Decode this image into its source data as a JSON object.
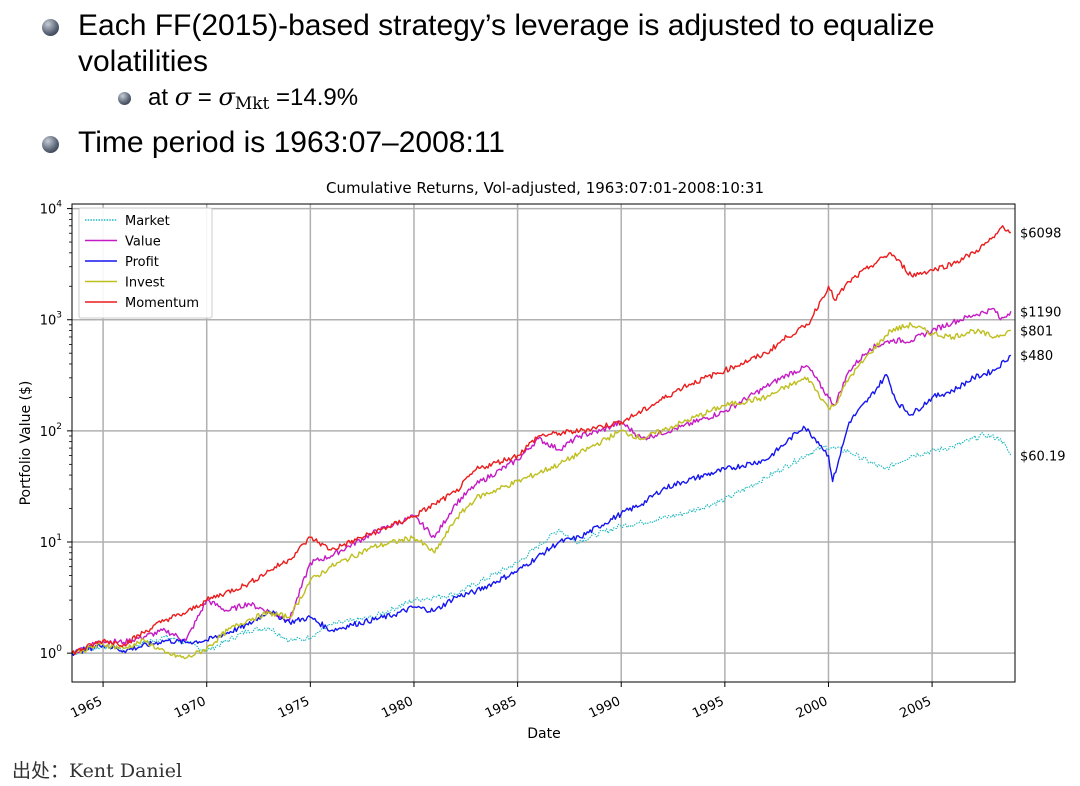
{
  "bullets": {
    "line1": "Each FF(2015)-based strategy’s leverage is adjusted to equalize",
    "line1b": "volatilities",
    "sub_prefix": "at ",
    "sub_sigma": "σ",
    "sub_eq": " = ",
    "sub_sigma2": "σ",
    "sub_mkt": "Mkt",
    "sub_value": " =14.9%",
    "line2": "Time period is 1963:07–2008:11"
  },
  "source": "出处：Kent Daniel",
  "chart_data": {
    "type": "line",
    "title": "Cumulative Returns, Vol-adjusted, 1963:07:01-2008:10:31",
    "xlabel": "Date",
    "ylabel": "Portfolio Value ($)",
    "yscale": "log",
    "xlim": [
      1963.5,
      2009.0
    ],
    "ylim": [
      0.55,
      11000
    ],
    "x_ticks": [
      "1965",
      "1970",
      "1975",
      "1980",
      "1985",
      "1990",
      "1995",
      "2000",
      "2005"
    ],
    "y_ticks": [
      {
        "base": "10",
        "exp": "0",
        "value": 1
      },
      {
        "base": "10",
        "exp": "1",
        "value": 10
      },
      {
        "base": "10",
        "exp": "2",
        "value": 100
      },
      {
        "base": "10",
        "exp": "3",
        "value": 1000
      },
      {
        "base": "10",
        "exp": "4",
        "value": 10000
      }
    ],
    "grid": true,
    "legend_position": "top-left",
    "series": [
      {
        "name": "Market",
        "color": "#1fb8bf",
        "dashed": true,
        "end_label": "$60.19",
        "x": [
          1963.5,
          1965,
          1966,
          1968,
          1969,
          1970,
          1972,
          1973,
          1974,
          1974.8,
          1976,
          1978,
          1980,
          1981,
          1982,
          1985,
          1987,
          1987.8,
          1990,
          1991,
          1993,
          1995,
          1997,
          1999,
          1999.8,
          2000.2,
          2001,
          2002.7,
          2004,
          2006,
          2007.5,
          2008.3,
          2008.8
        ],
        "y": [
          1.0,
          1.15,
          1.1,
          1.4,
          1.25,
          1.05,
          1.6,
          1.7,
          1.3,
          1.35,
          1.8,
          2.1,
          3.0,
          3.2,
          3.4,
          6.5,
          13,
          10,
          14,
          15,
          18,
          24,
          38,
          62,
          72,
          70,
          65,
          45,
          60,
          72,
          92,
          85,
          60.19
        ]
      },
      {
        "name": "Value",
        "color": "#c41bc4",
        "dashed": false,
        "end_label": "$1190",
        "x": [
          1963.5,
          1965,
          1966,
          1968,
          1969,
          1970,
          1971,
          1972,
          1974,
          1975,
          1976,
          1978,
          1980,
          1981,
          1982,
          1983,
          1985,
          1986,
          1987,
          1988,
          1989,
          1990,
          1991,
          1993,
          1995,
          1997,
          1998,
          1999,
          2000,
          2000.3,
          2001,
          2002,
          2003,
          2004,
          2005,
          2006,
          2007,
          2008,
          2008.3,
          2008.8
        ],
        "y": [
          1.0,
          1.3,
          1.25,
          1.6,
          1.3,
          3.0,
          2.4,
          2.8,
          2.0,
          6.5,
          7.5,
          12,
          17,
          11,
          22,
          33,
          55,
          85,
          68,
          90,
          100,
          120,
          85,
          110,
          150,
          250,
          320,
          380,
          200,
          170,
          350,
          550,
          650,
          650,
          800,
          950,
          1100,
          1250,
          1000,
          1190
        ]
      },
      {
        "name": "Profit",
        "color": "#1515f0",
        "dashed": false,
        "end_label": "$480",
        "x": [
          1963.5,
          1965,
          1966,
          1968,
          1969,
          1970,
          1972,
          1973,
          1974,
          1975,
          1976,
          1977,
          1979,
          1980,
          1981,
          1982,
          1983,
          1985,
          1987,
          1988,
          1990,
          1991,
          1992,
          1993,
          1995,
          1997,
          1998,
          1998.8,
          1999.5,
          2000,
          2000.2,
          2000.5,
          2001,
          2002,
          2002.8,
          2003.3,
          2004,
          2005,
          2006,
          2007,
          2008,
          2008.8
        ],
        "y": [
          1.0,
          1.2,
          1.05,
          1.3,
          1.25,
          1.3,
          1.8,
          2.4,
          1.9,
          2.1,
          1.6,
          1.8,
          2.2,
          2.6,
          2.4,
          3.2,
          3.6,
          5.5,
          10,
          11,
          18,
          22,
          30,
          35,
          45,
          55,
          80,
          110,
          80,
          60,
          35,
          55,
          120,
          200,
          320,
          180,
          140,
          200,
          230,
          300,
          350,
          480
        ]
      },
      {
        "name": "Invest",
        "color": "#bfbf1f",
        "dashed": false,
        "end_label": "$801",
        "x": [
          1963.5,
          1965,
          1966,
          1967,
          1968,
          1969,
          1970,
          1971,
          1972,
          1973,
          1974,
          1975,
          1976,
          1978,
          1980,
          1981,
          1982,
          1983,
          1985,
          1987,
          1990,
          1991,
          1993,
          1995,
          1997,
          1998,
          1999,
          2000,
          2000.3,
          2001,
          2002,
          2003,
          2004,
          2005,
          2006,
          2007,
          2008,
          2008.8
        ],
        "y": [
          1.0,
          1.2,
          1.1,
          1.3,
          1.0,
          0.9,
          1.1,
          1.6,
          2.0,
          2.3,
          2.1,
          4.5,
          6.0,
          9,
          11,
          8,
          16,
          25,
          35,
          50,
          100,
          85,
          120,
          170,
          200,
          250,
          300,
          160,
          170,
          300,
          500,
          800,
          900,
          750,
          700,
          800,
          700,
          801
        ]
      },
      {
        "name": "Momentum",
        "color": "#ec1c1c",
        "dashed": false,
        "end_label": "$6098",
        "x": [
          1963.5,
          1965,
          1966,
          1968,
          1969,
          1970,
          1972,
          1973,
          1974,
          1975,
          1976,
          1978,
          1980,
          1981,
          1982,
          1983,
          1985,
          1986,
          1987,
          1988,
          1990,
          1991,
          1993,
          1995,
          1997,
          1998,
          1999,
          2000,
          2000.3,
          2001,
          2002,
          2003,
          2004,
          2005,
          2006,
          2007,
          2008,
          2008.4,
          2008.8
        ],
        "y": [
          1.0,
          1.3,
          1.2,
          2.0,
          2.3,
          3.0,
          4.2,
          5.5,
          7.0,
          11,
          8.5,
          12,
          17,
          22,
          28,
          45,
          60,
          90,
          95,
          100,
          120,
          150,
          250,
          350,
          500,
          700,
          900,
          2000,
          1500,
          2200,
          3000,
          4000,
          2500,
          2800,
          3200,
          4000,
          5500,
          7000,
          6098
        ]
      }
    ]
  }
}
